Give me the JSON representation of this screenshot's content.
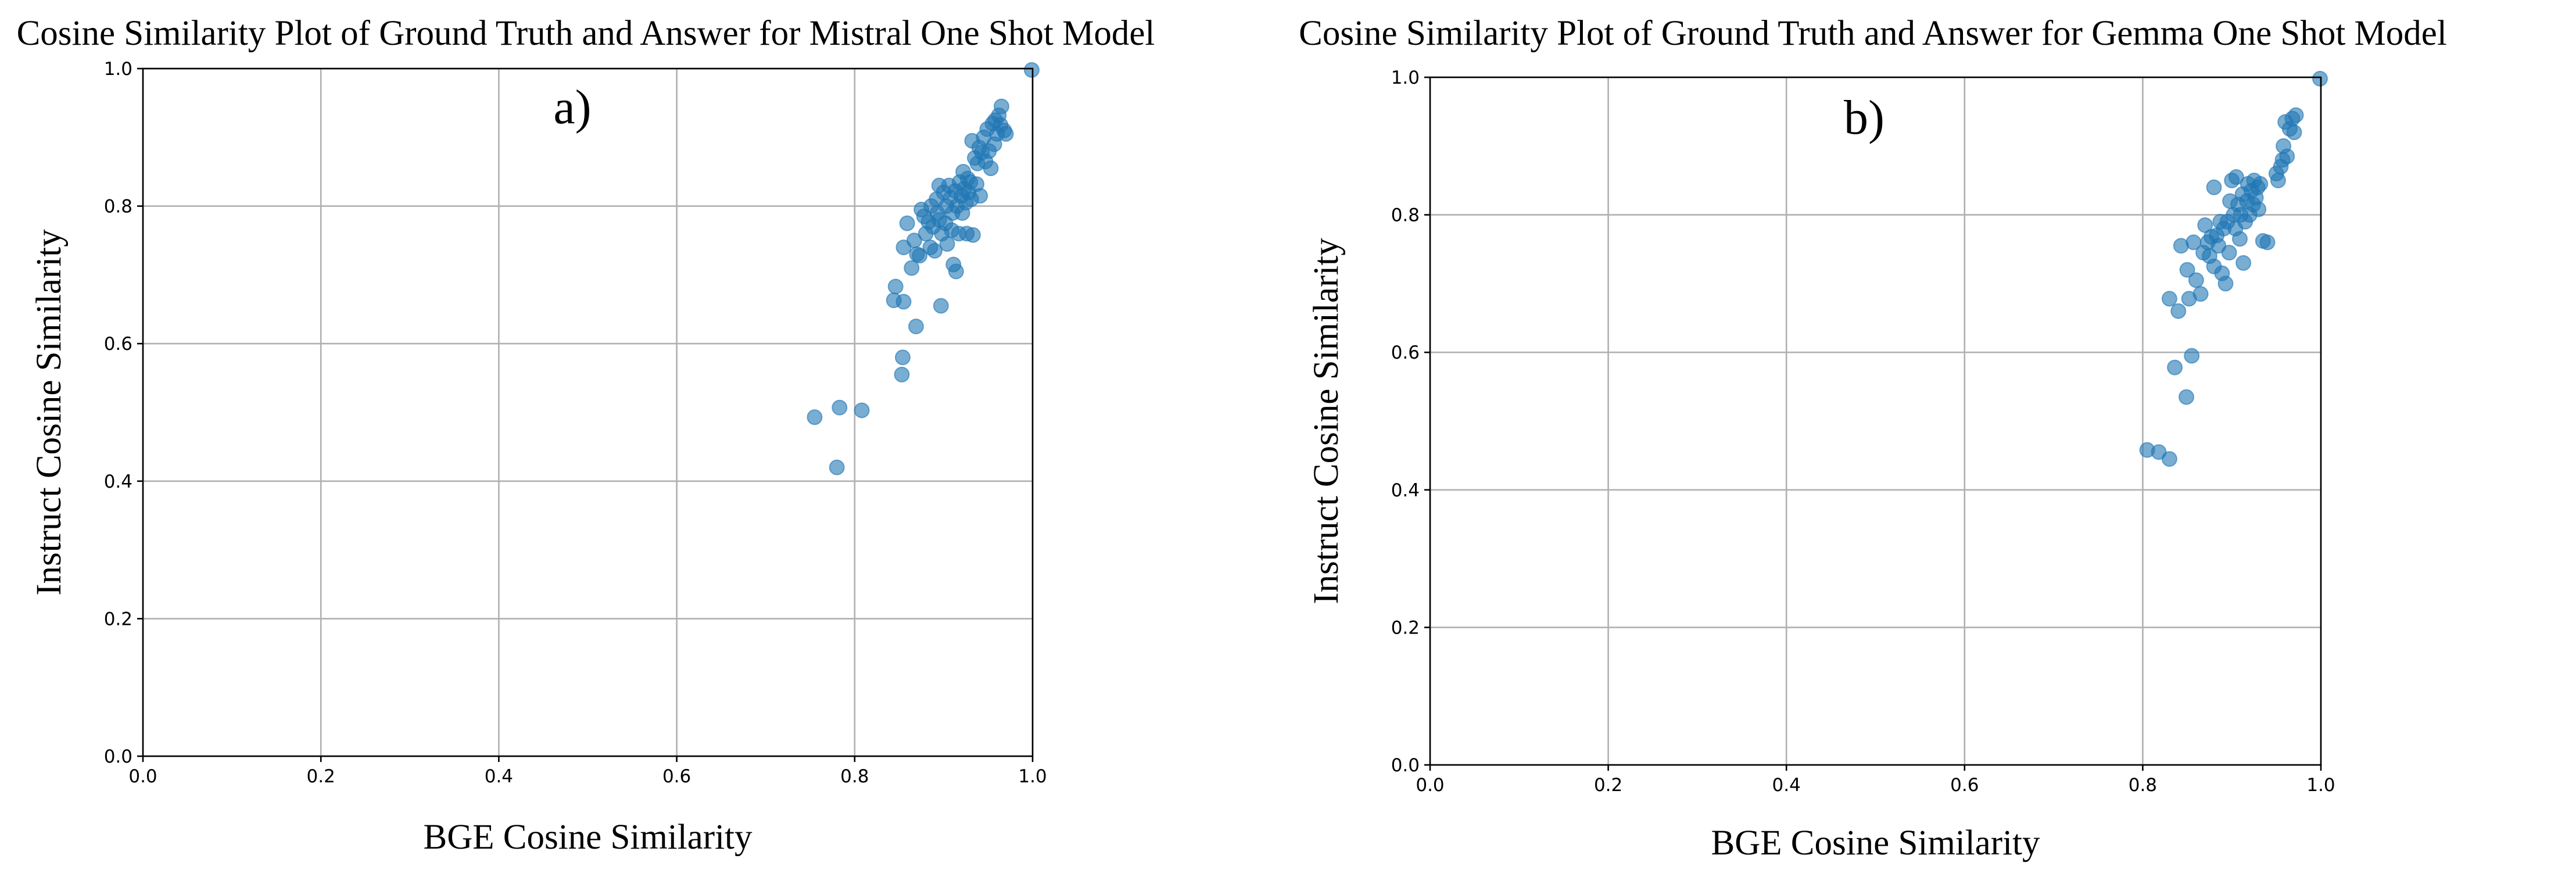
{
  "chart_data": [
    {
      "type": "scatter",
      "title": "Cosine Similarity Plot of Ground Truth and Answer for Mistral One Shot Model",
      "panel_label": "a)",
      "xlabel": "BGE Cosine Similarity",
      "ylabel": "Instruct Cosine Similarity",
      "xlim": [
        0.0,
        1.0
      ],
      "ylim": [
        0.0,
        1.0
      ],
      "xticks": [
        "0.0",
        "0.2",
        "0.4",
        "0.6",
        "0.8",
        "1.0"
      ],
      "yticks": [
        "0.0",
        "0.2",
        "0.4",
        "0.6",
        "0.8",
        "1.0"
      ],
      "grid": true,
      "marker_color": "#1f77b4",
      "marker_alpha": 0.6,
      "points": [
        [
          0.755,
          0.493
        ],
        [
          0.78,
          0.42
        ],
        [
          0.783,
          0.507
        ],
        [
          0.808,
          0.503
        ],
        [
          0.844,
          0.663
        ],
        [
          0.846,
          0.683
        ],
        [
          0.853,
          0.555
        ],
        [
          0.854,
          0.58
        ],
        [
          0.855,
          0.661
        ],
        [
          0.855,
          0.74
        ],
        [
          0.859,
          0.775
        ],
        [
          0.864,
          0.71
        ],
        [
          0.867,
          0.75
        ],
        [
          0.869,
          0.625
        ],
        [
          0.87,
          0.73
        ],
        [
          0.873,
          0.728
        ],
        [
          0.875,
          0.795
        ],
        [
          0.878,
          0.785
        ],
        [
          0.88,
          0.76
        ],
        [
          0.883,
          0.777
        ],
        [
          0.885,
          0.74
        ],
        [
          0.886,
          0.8
        ],
        [
          0.888,
          0.77
        ],
        [
          0.89,
          0.735
        ],
        [
          0.892,
          0.81
        ],
        [
          0.893,
          0.79
        ],
        [
          0.895,
          0.83
        ],
        [
          0.895,
          0.78
        ],
        [
          0.897,
          0.655
        ],
        [
          0.898,
          0.76
        ],
        [
          0.9,
          0.82
        ],
        [
          0.902,
          0.775
        ],
        [
          0.903,
          0.8
        ],
        [
          0.904,
          0.745
        ],
        [
          0.906,
          0.83
        ],
        [
          0.908,
          0.812
        ],
        [
          0.909,
          0.765
        ],
        [
          0.91,
          0.79
        ],
        [
          0.911,
          0.715
        ],
        [
          0.913,
          0.822
        ],
        [
          0.914,
          0.705
        ],
        [
          0.915,
          0.8
        ],
        [
          0.917,
          0.76
        ],
        [
          0.918,
          0.835
        ],
        [
          0.92,
          0.815
        ],
        [
          0.921,
          0.79
        ],
        [
          0.922,
          0.85
        ],
        [
          0.923,
          0.825
        ],
        [
          0.925,
          0.805
        ],
        [
          0.926,
          0.76
        ],
        [
          0.927,
          0.84
        ],
        [
          0.928,
          0.82
        ],
        [
          0.93,
          0.835
        ],
        [
          0.931,
          0.81
        ],
        [
          0.932,
          0.895
        ],
        [
          0.933,
          0.758
        ],
        [
          0.935,
          0.87
        ],
        [
          0.937,
          0.832
        ],
        [
          0.938,
          0.862
        ],
        [
          0.94,
          0.885
        ],
        [
          0.941,
          0.815
        ],
        [
          0.943,
          0.878
        ],
        [
          0.945,
          0.9
        ],
        [
          0.947,
          0.865
        ],
        [
          0.949,
          0.912
        ],
        [
          0.951,
          0.88
        ],
        [
          0.953,
          0.855
        ],
        [
          0.955,
          0.92
        ],
        [
          0.957,
          0.89
        ],
        [
          0.958,
          0.925
        ],
        [
          0.96,
          0.905
        ],
        [
          0.962,
          0.932
        ],
        [
          0.964,
          0.918
        ],
        [
          0.965,
          0.945
        ],
        [
          0.968,
          0.91
        ],
        [
          0.97,
          0.905
        ],
        [
          0.999,
          0.998
        ]
      ]
    },
    {
      "type": "scatter",
      "title": "Cosine Similarity Plot of Ground Truth and Answer for Gemma One Shot Model",
      "panel_label": "b)",
      "xlabel": "BGE Cosine Similarity",
      "ylabel": "Instruct Cosine Similarity",
      "xlim": [
        0.0,
        1.0
      ],
      "ylim": [
        0.0,
        1.0
      ],
      "xticks": [
        "0.0",
        "0.2",
        "0.4",
        "0.6",
        "0.8",
        "1.0"
      ],
      "yticks": [
        "0.0",
        "0.2",
        "0.4",
        "0.6",
        "0.8",
        "1.0"
      ],
      "grid": true,
      "marker_color": "#1f77b4",
      "marker_alpha": 0.6,
      "points": [
        [
          0.805,
          0.458
        ],
        [
          0.818,
          0.455
        ],
        [
          0.83,
          0.445
        ],
        [
          0.83,
          0.678
        ],
        [
          0.836,
          0.578
        ],
        [
          0.84,
          0.66
        ],
        [
          0.843,
          0.755
        ],
        [
          0.849,
          0.535
        ],
        [
          0.85,
          0.72
        ],
        [
          0.852,
          0.678
        ],
        [
          0.855,
          0.595
        ],
        [
          0.857,
          0.76
        ],
        [
          0.86,
          0.705
        ],
        [
          0.865,
          0.685
        ],
        [
          0.868,
          0.745
        ],
        [
          0.87,
          0.785
        ],
        [
          0.873,
          0.76
        ],
        [
          0.875,
          0.74
        ],
        [
          0.877,
          0.768
        ],
        [
          0.88,
          0.725
        ],
        [
          0.88,
          0.84
        ],
        [
          0.883,
          0.77
        ],
        [
          0.885,
          0.755
        ],
        [
          0.887,
          0.79
        ],
        [
          0.889,
          0.715
        ],
        [
          0.891,
          0.78
        ],
        [
          0.893,
          0.7
        ],
        [
          0.895,
          0.79
        ],
        [
          0.897,
          0.745
        ],
        [
          0.898,
          0.82
        ],
        [
          0.9,
          0.85
        ],
        [
          0.902,
          0.8
        ],
        [
          0.904,
          0.78
        ],
        [
          0.905,
          0.855
        ],
        [
          0.907,
          0.815
        ],
        [
          0.909,
          0.765
        ],
        [
          0.91,
          0.8
        ],
        [
          0.912,
          0.83
        ],
        [
          0.913,
          0.73
        ],
        [
          0.915,
          0.79
        ],
        [
          0.917,
          0.82
        ],
        [
          0.918,
          0.845
        ],
        [
          0.92,
          0.8
        ],
        [
          0.922,
          0.835
        ],
        [
          0.924,
          0.815
        ],
        [
          0.925,
          0.85
        ],
        [
          0.927,
          0.825
        ],
        [
          0.929,
          0.84
        ],
        [
          0.93,
          0.808
        ],
        [
          0.932,
          0.845
        ],
        [
          0.935,
          0.762
        ],
        [
          0.94,
          0.76
        ],
        [
          0.95,
          0.86
        ],
        [
          0.952,
          0.85
        ],
        [
          0.955,
          0.87
        ],
        [
          0.957,
          0.88
        ],
        [
          0.958,
          0.9
        ],
        [
          0.96,
          0.935
        ],
        [
          0.962,
          0.885
        ],
        [
          0.965,
          0.925
        ],
        [
          0.968,
          0.94
        ],
        [
          0.97,
          0.92
        ],
        [
          0.972,
          0.945
        ],
        [
          0.999,
          0.998
        ]
      ]
    }
  ]
}
